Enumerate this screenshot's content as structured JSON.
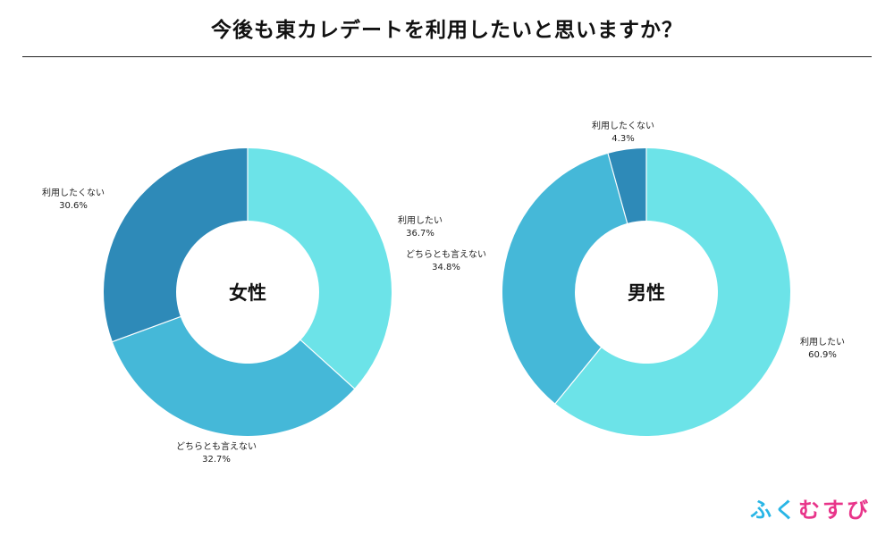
{
  "title": "今後も東カレデートを利用したいと思いますか？",
  "logo": {
    "chars": [
      "ふ",
      "く",
      "む",
      "す",
      "び"
    ],
    "colors": [
      "#29b6e6",
      "#29b6e6",
      "#e8358a",
      "#e8358a",
      "#e8358a"
    ]
  },
  "chart_data": [
    {
      "type": "pie",
      "donut": true,
      "title": "女性",
      "slices": [
        {
          "name": "利用したい",
          "value": 36.7,
          "label": "36.7%",
          "color": "#6ce3e8"
        },
        {
          "name": "どちらとも言えない",
          "value": 32.7,
          "label": "32.7%",
          "color": "#45b8d8"
        },
        {
          "name": "利用したくない",
          "value": 30.6,
          "label": "30.6%",
          "color": "#2e8ab8"
        }
      ]
    },
    {
      "type": "pie",
      "donut": true,
      "title": "男性",
      "slices": [
        {
          "name": "利用したい",
          "value": 60.9,
          "label": "60.9%",
          "color": "#6ce3e8"
        },
        {
          "name": "どちらとも言えない",
          "value": 34.8,
          "label": "34.8%",
          "color": "#45b8d8"
        },
        {
          "name": "利用したくない",
          "value": 4.3,
          "label": "4.3%",
          "color": "#2e8ab8"
        }
      ]
    }
  ]
}
